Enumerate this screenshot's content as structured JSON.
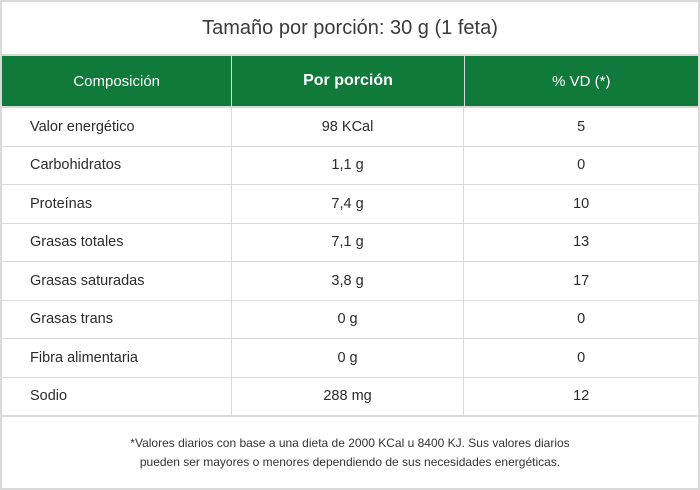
{
  "title": "Tamaño por porción: 30 g (1 feta)",
  "headers": {
    "composition": "Composición",
    "per_portion": "Por porción",
    "vd": "% VD (*)"
  },
  "rows": [
    {
      "name": "Valor energético",
      "amount": "98 KCal",
      "vd": "5"
    },
    {
      "name": "Carbohidratos",
      "amount": "1,1 g",
      "vd": "0"
    },
    {
      "name": "Proteínas",
      "amount": "7,4 g",
      "vd": "10"
    },
    {
      "name": "Grasas totales",
      "amount": "7,1 g",
      "vd": "13"
    },
    {
      "name": "Grasas saturadas",
      "amount": "3,8 g",
      "vd": "17"
    },
    {
      "name": "Grasas trans",
      "amount": "0 g",
      "vd": "0"
    },
    {
      "name": "Fibra alimentaria",
      "amount": "0 g",
      "vd": "0"
    },
    {
      "name": "Sodio",
      "amount": "288 mg",
      "vd": "12"
    }
  ],
  "footnote": {
    "line1": "*Valores diarios con base a una dieta de 2000 KCal u 8400 KJ. Sus valores diarios",
    "line2": "pueden ser mayores o menores dependiendo de sus necesidades energéticas."
  },
  "colors": {
    "header_bg": "#0f7a3a",
    "border": "#d9d9d9"
  }
}
